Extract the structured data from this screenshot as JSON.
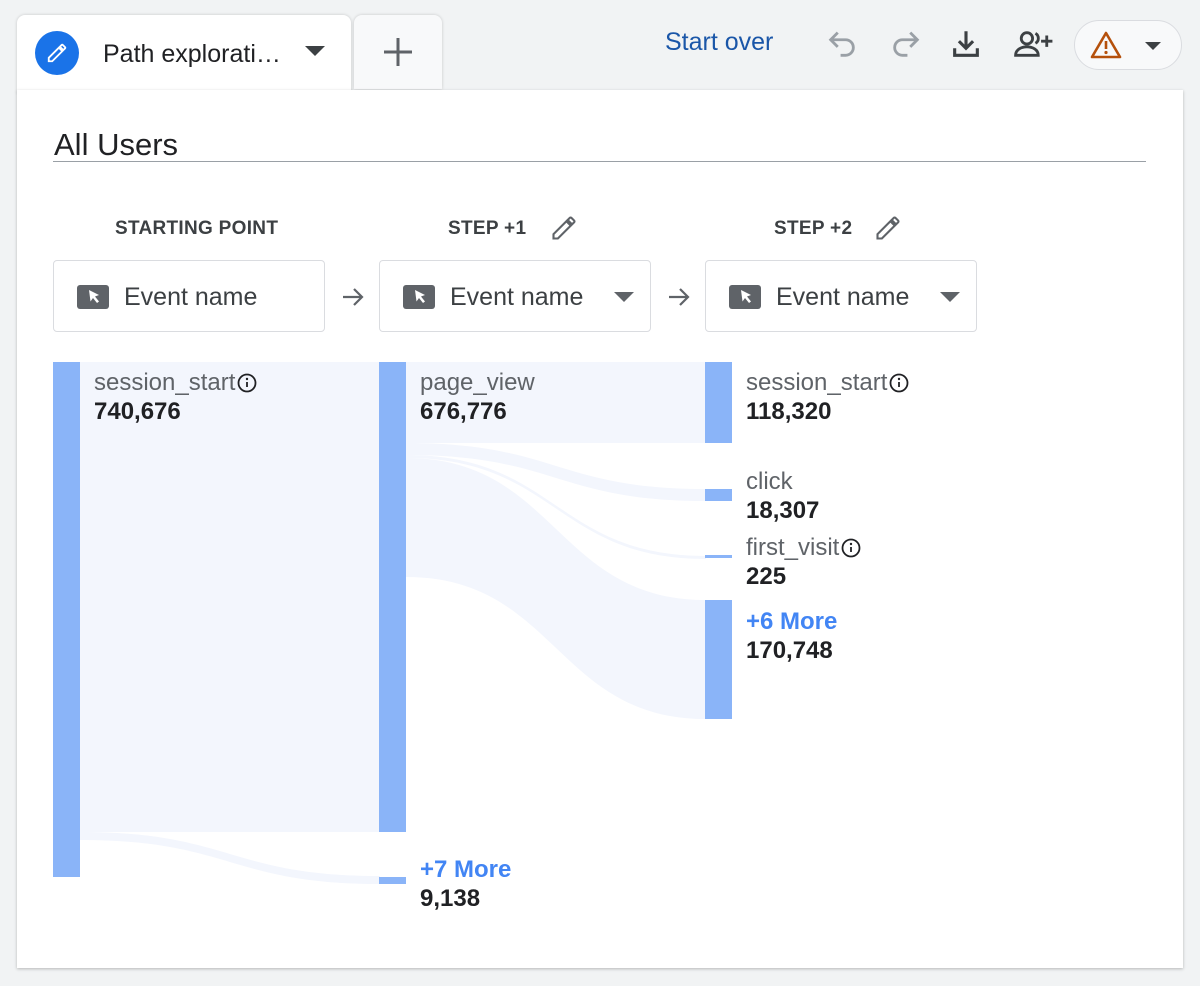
{
  "tab": {
    "title": "Path explorati…",
    "icon": "pencil-icon"
  },
  "toolbar": {
    "start_over": "Start over",
    "icons": [
      "undo-icon",
      "redo-icon",
      "download-icon",
      "share-user-icon",
      "warning-icon"
    ]
  },
  "segment": {
    "name": "All Users"
  },
  "columns": [
    {
      "heading": "STARTING POINT",
      "dimension": "Event name",
      "editable": false
    },
    {
      "heading": "STEP +1",
      "dimension": "Event name",
      "editable": true
    },
    {
      "heading": "STEP +2",
      "dimension": "Event name",
      "editable": true
    }
  ],
  "nodes": {
    "start": [
      {
        "name": "session_start",
        "value": "740,676",
        "count": 740676,
        "info": true
      }
    ],
    "step1": [
      {
        "name": "page_view",
        "value": "676,776",
        "count": 676776,
        "info": false
      },
      {
        "name": "+7 More",
        "value": "9,138",
        "count": 9138,
        "more": true
      }
    ],
    "step2": [
      {
        "name": "session_start",
        "value": "118,320",
        "count": 118320,
        "info": true
      },
      {
        "name": "click",
        "value": "18,307",
        "count": 18307,
        "info": false
      },
      {
        "name": "first_visit",
        "value": "225",
        "count": 225,
        "info": true
      },
      {
        "name": "+6 More",
        "value": "170,748",
        "count": 170748,
        "more": true
      }
    ]
  },
  "colors": {
    "node_bar": "#8ab4f8",
    "flow": "#f3f6fd",
    "accent": "#1a73e8",
    "more_link": "#4285f4",
    "warning": "#b5500b"
  }
}
